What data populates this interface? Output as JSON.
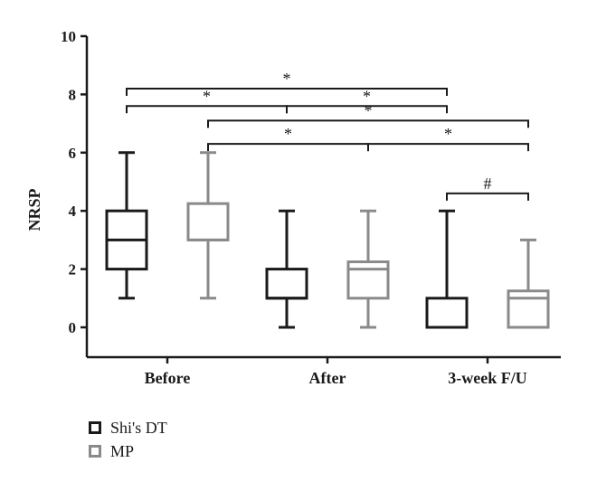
{
  "chart_data": {
    "type": "box",
    "ylabel": "NRSP",
    "xlabel": "",
    "ylim": [
      0,
      10
    ],
    "yticks": [
      "0",
      "2",
      "4",
      "6",
      "8",
      "10"
    ],
    "categories": [
      "Before",
      "After",
      "3-week F/U"
    ],
    "series": [
      {
        "name": "Shi's DT",
        "color": "#1a1a1a",
        "boxes": [
          {
            "min": 1,
            "q1": 2,
            "median": 3,
            "q3": 4,
            "max": 6
          },
          {
            "min": 0,
            "q1": 1,
            "median": 1,
            "q3": 2,
            "max": 4
          },
          {
            "min": 0,
            "q1": 0,
            "median": 0,
            "q3": 1,
            "max": 4
          }
        ]
      },
      {
        "name": "MP",
        "color": "#8a8a8a",
        "boxes": [
          {
            "min": 1,
            "q1": 3,
            "median": 3,
            "q3": 4.25,
            "max": 6
          },
          {
            "min": 0,
            "q1": 1,
            "median": 2,
            "q3": 2.25,
            "max": 4
          },
          {
            "min": 0,
            "q1": 0,
            "median": 1,
            "q3": 1.25,
            "max": 3
          }
        ]
      }
    ],
    "significance": [
      {
        "from": [
          0,
          0
        ],
        "to": [
          2,
          0
        ],
        "y": 8.2,
        "label": "*"
      },
      {
        "from": [
          0,
          0
        ],
        "to": [
          1,
          0
        ],
        "y": 7.6,
        "label": "*"
      },
      {
        "from": [
          1,
          0
        ],
        "to": [
          2,
          0
        ],
        "y": 7.6,
        "label": "*"
      },
      {
        "from": [
          0,
          1
        ],
        "to": [
          2,
          1
        ],
        "y": 7.1,
        "label": "*"
      },
      {
        "from": [
          0,
          1
        ],
        "to": [
          1,
          1
        ],
        "y": 6.3,
        "label": "*"
      },
      {
        "from": [
          1,
          1
        ],
        "to": [
          2,
          1
        ],
        "y": 6.3,
        "label": "*"
      },
      {
        "from": [
          2,
          0
        ],
        "to": [
          2,
          1
        ],
        "y": 4.6,
        "label": "#"
      }
    ]
  },
  "legend": {
    "items": [
      "Shi's DT",
      "MP"
    ]
  }
}
